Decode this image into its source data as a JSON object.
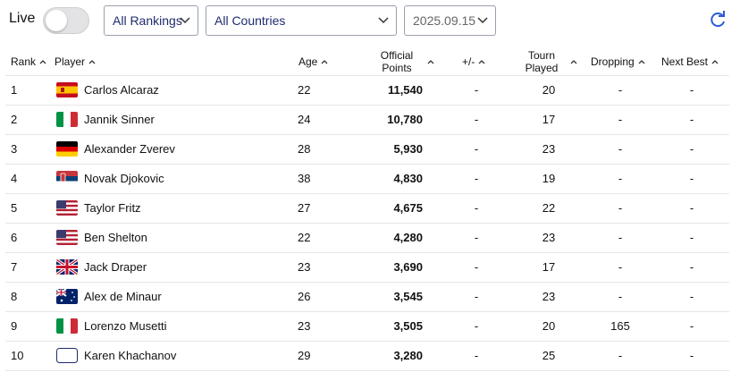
{
  "toolbar": {
    "live_label": "Live",
    "rankings_select": "All Rankings",
    "countries_select": "All Countries",
    "date_select": "2025.09.15"
  },
  "table": {
    "headers": [
      "Rank",
      "Player",
      "Age",
      "Official Points",
      "+/-",
      "Tourn Played",
      "Dropping",
      "Next Best"
    ],
    "rows": [
      [
        "1",
        "Carlos Alcaraz",
        "22",
        "11,540",
        "-",
        "20",
        "-",
        "-"
      ],
      [
        "2",
        "Jannik Sinner",
        "24",
        "10,780",
        "-",
        "17",
        "-",
        "-"
      ],
      [
        "3",
        "Alexander Zverev",
        "28",
        "5,930",
        "-",
        "23",
        "-",
        "-"
      ],
      [
        "4",
        "Novak Djokovic",
        "38",
        "4,830",
        "-",
        "19",
        "-",
        "-"
      ],
      [
        "5",
        "Taylor Fritz",
        "27",
        "4,675",
        "-",
        "22",
        "-",
        "-"
      ],
      [
        "6",
        "Ben Shelton",
        "22",
        "4,280",
        "-",
        "23",
        "-",
        "-"
      ],
      [
        "7",
        "Jack Draper",
        "23",
        "3,690",
        "-",
        "17",
        "-",
        "-"
      ],
      [
        "8",
        "Alex de Minaur",
        "26",
        "3,545",
        "-",
        "23",
        "-",
        "-"
      ],
      [
        "9",
        "Lorenzo Musetti",
        "23",
        "3,505",
        "-",
        "20",
        "165",
        "-"
      ],
      [
        "10",
        "Karen Khachanov",
        "29",
        "3,280",
        "-",
        "25",
        "-",
        "-"
      ]
    ]
  }
}
